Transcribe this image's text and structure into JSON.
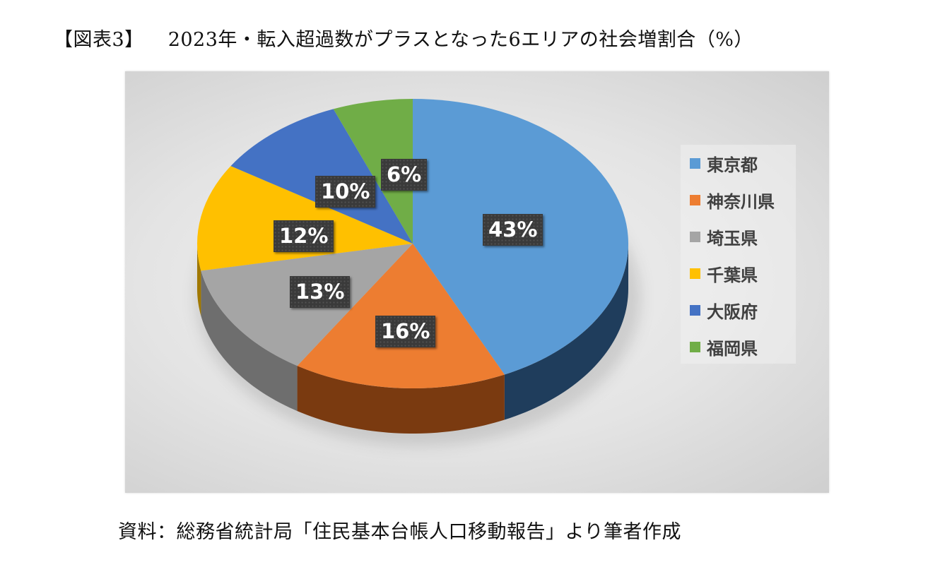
{
  "title": {
    "figure_label": "【図表3】",
    "text": "2023年・転入超過数がプラスとなった6エリアの社会増割合（%）"
  },
  "source": "資料：総務省統計局「住民基本台帳人口移動報告」より筆者作成",
  "chart_data": {
    "type": "pie",
    "style": "3d-pie",
    "title": "2023年・転入超過数がプラスとなった6エリアの社会増割合（%）",
    "legend_position": "right",
    "categories": [
      "東京都",
      "神奈川県",
      "埼玉県",
      "千葉県",
      "大阪府",
      "福岡県"
    ],
    "values": [
      43,
      16,
      13,
      12,
      10,
      6
    ],
    "labels": [
      "43%",
      "16%",
      "13%",
      "12%",
      "10%",
      "6%"
    ],
    "colors": [
      "#5b9bd5",
      "#ed7d31",
      "#a5a5a5",
      "#ffc000",
      "#4472c4",
      "#70ad47"
    ],
    "side_colors": [
      "#1f3d5c",
      "#7a3a10",
      "#6e6e6e",
      "#a07800",
      "#2a4880",
      "#447030"
    ]
  },
  "legend": {
    "items": [
      {
        "label": "東京都",
        "color": "#5b9bd5"
      },
      {
        "label": "神奈川県",
        "color": "#ed7d31"
      },
      {
        "label": "埼玉県",
        "color": "#a5a5a5"
      },
      {
        "label": "千葉県",
        "color": "#ffc000"
      },
      {
        "label": "大阪府",
        "color": "#4472c4"
      },
      {
        "label": "福岡県",
        "color": "#70ad47"
      }
    ]
  }
}
